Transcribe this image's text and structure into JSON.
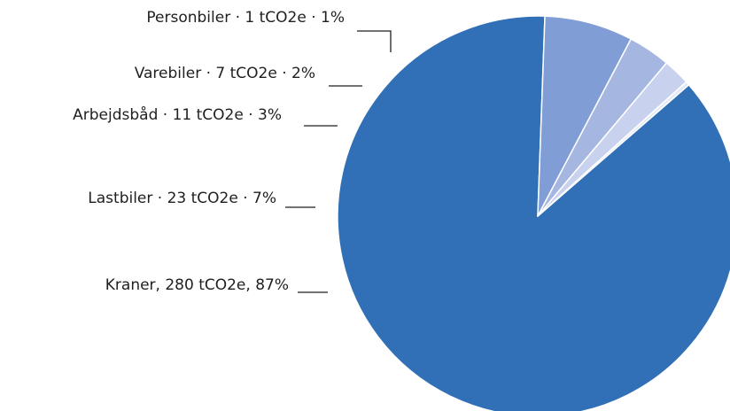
{
  "chart_data": {
    "type": "pie",
    "unit": "tCO2e",
    "title": "",
    "slices": [
      {
        "name": "Kraner",
        "value": 280,
        "percent": 87,
        "label": "Kraner, 280 tCO2e, 87%",
        "color": "#3170B7"
      },
      {
        "name": "Lastbiler",
        "value": 23,
        "percent": 7,
        "label": "Lastbiler · 23 tCO2e · 7%",
        "color": "#809ED5"
      },
      {
        "name": "Arbejdsbåd",
        "value": 11,
        "percent": 3,
        "label": "Arbejdsbåd · 11 tCO2e · 3%",
        "color": "#A5B7E1"
      },
      {
        "name": "Varebiler",
        "value": 7,
        "percent": 2,
        "label": "Varebiler · 7 tCO2e · 2%",
        "color": "#C8D2EE"
      },
      {
        "name": "Personbiler",
        "value": 1,
        "percent": 1,
        "label": "Personbiler · 1 tCO2e · 1%",
        "color": "#E3E9F7"
      }
    ]
  }
}
